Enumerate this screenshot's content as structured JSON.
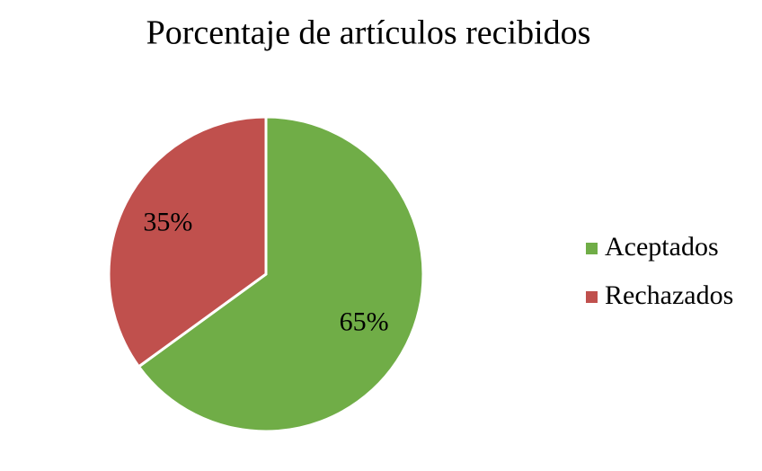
{
  "chart_data": {
    "type": "pie",
    "title": "Porcentaje de artículos recibidos",
    "categories": [
      "Aceptados",
      "Rechazados"
    ],
    "values": [
      65,
      35
    ],
    "value_labels": [
      "65%",
      "35%"
    ],
    "colors": [
      "#70ad47",
      "#c0504d"
    ],
    "legend": "right"
  }
}
